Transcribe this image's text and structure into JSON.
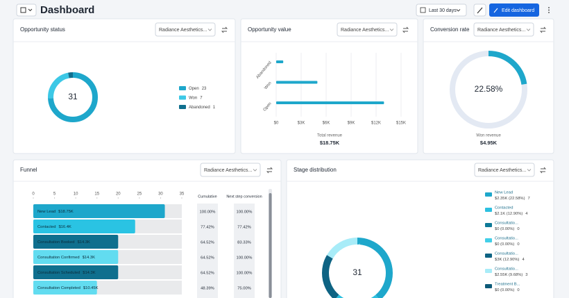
{
  "header": {
    "title": "Dashboard",
    "date_range": "Last 30 days",
    "edit_button": "Edit dashboard"
  },
  "opportunity_status": {
    "title": "Opportunity status",
    "filter": "Radiance Aesthetics...",
    "total": 31,
    "segments": [
      {
        "name": "Open",
        "value": 23,
        "color": "#1ea7cb"
      },
      {
        "name": "Won",
        "value": 7,
        "color": "#3cc8e6"
      },
      {
        "name": "Abandoned",
        "value": 1,
        "color": "#0f6f8e"
      }
    ]
  },
  "opportunity_value": {
    "title": "Opportunity value",
    "filter": "Radiance Aesthetics...",
    "type": "bar",
    "orientation": "horizontal",
    "categories": [
      "Abandoned",
      "Won",
      "Open"
    ],
    "values": [
      850,
      4950,
      12950
    ],
    "color": "#1ea7cb",
    "xlim": [
      0,
      15000
    ],
    "xticks": [
      {
        "value": 0,
        "label": "$0"
      },
      {
        "value": 3000,
        "label": "$3K"
      },
      {
        "value": 6000,
        "label": "$6K"
      },
      {
        "value": 9000,
        "label": "$9K"
      },
      {
        "value": 12000,
        "label": "$12K"
      },
      {
        "value": 15000,
        "label": "$15K"
      }
    ],
    "grid": true,
    "footer_label": "Total revenue",
    "footer_value": "$18.75K"
  },
  "conversion_rate": {
    "title": "Conversion rate",
    "filter": "Radiance Aesthetics...",
    "value": 22.58,
    "value_label": "22.58%",
    "range": [
      0,
      100
    ],
    "color": "#1ea7cb",
    "track_color": "#e3e9f3",
    "footer_label": "Won revenue",
    "footer_value": "$4.95K"
  },
  "funnel": {
    "title": "Funnel",
    "filter": "Radiance Aesthetics...",
    "xlim": [
      0,
      35
    ],
    "xticks": [
      0,
      5,
      10,
      15,
      20,
      25,
      30,
      35
    ],
    "columns": [
      "Cumulative",
      "Next step conversion"
    ],
    "stages": [
      {
        "name": "New Lead",
        "revenue": "$18.75K",
        "count": 31,
        "cumulative": "100.00%",
        "next_step": "100.00%",
        "color": "#1ea7cb"
      },
      {
        "name": "Contacted",
        "revenue": "$16.4K",
        "count": 24,
        "cumulative": "77.42%",
        "next_step": "77.42%",
        "color": "#2ac3e3"
      },
      {
        "name": "Consultation Booked",
        "revenue": "$14.3K",
        "count": 20,
        "cumulative": "64.52%",
        "next_step": "83.33%",
        "color": "#0f6f8e"
      },
      {
        "name": "Consultation Confirmed",
        "revenue": "$14.3K",
        "count": 20,
        "cumulative": "64.52%",
        "next_step": "100.00%",
        "color": "#62dcf0"
      },
      {
        "name": "Consultation Scheduled",
        "revenue": "$14.3K",
        "count": 20,
        "cumulative": "64.52%",
        "next_step": "100.00%",
        "color": "#0f6f8e"
      },
      {
        "name": "Consultation Completed",
        "revenue": "$10.45K",
        "count": 15,
        "cumulative": "48.39%",
        "next_step": "75.00%",
        "color": "#62dcf0"
      }
    ]
  },
  "stage_distribution": {
    "title": "Stage distribution",
    "filter": "Radiance Aesthetics...",
    "total": 31,
    "segments": [
      {
        "name": "New Lead",
        "detail": "$2.35K (22.58%)",
        "count": 7,
        "color": "#1ea7cb"
      },
      {
        "name": "Contacted",
        "detail": "$2.1K (12.90%)",
        "count": 4,
        "color": "#2cc0e0"
      },
      {
        "name": "Consultatio...",
        "detail": "$0 (0.00%)",
        "count": 0,
        "color": "#0e7a98"
      },
      {
        "name": "Consultatio...",
        "detail": "$0 (0.00%)",
        "count": 0,
        "color": "#42cfe8"
      },
      {
        "name": "Consultatio...",
        "detail": "$3K (12.90%)",
        "count": 4,
        "color": "#0e6383"
      },
      {
        "name": "Consultatio...",
        "detail": "$2.55K (9.68%)",
        "count": 3,
        "color": "#a8ecf8"
      },
      {
        "name": "Treatment B...",
        "detail": "$0 (0.00%)",
        "count": 0,
        "color": "#0d5a78"
      }
    ]
  }
}
